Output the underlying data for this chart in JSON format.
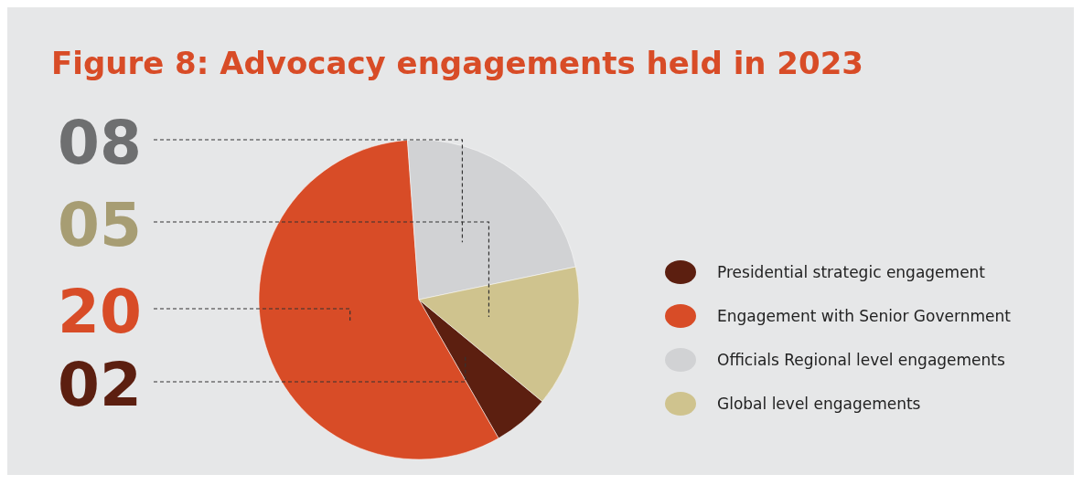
{
  "chart_data": {
    "type": "pie",
    "title": "Figure 8:  Advocacy engagements held in 2023",
    "categories": [
      "Presidential strategic engagement",
      "Engagement with Senior Government",
      "Officials Regional level engagements",
      "Global level engagements"
    ],
    "values": [
      2,
      20,
      8,
      5
    ],
    "colors": [
      "#5c1f10",
      "#d84c27",
      "#d1d2d4",
      "#cfc38e"
    ],
    "value_labels": [
      "02",
      "20",
      "08",
      "05"
    ],
    "legend": "right"
  }
}
